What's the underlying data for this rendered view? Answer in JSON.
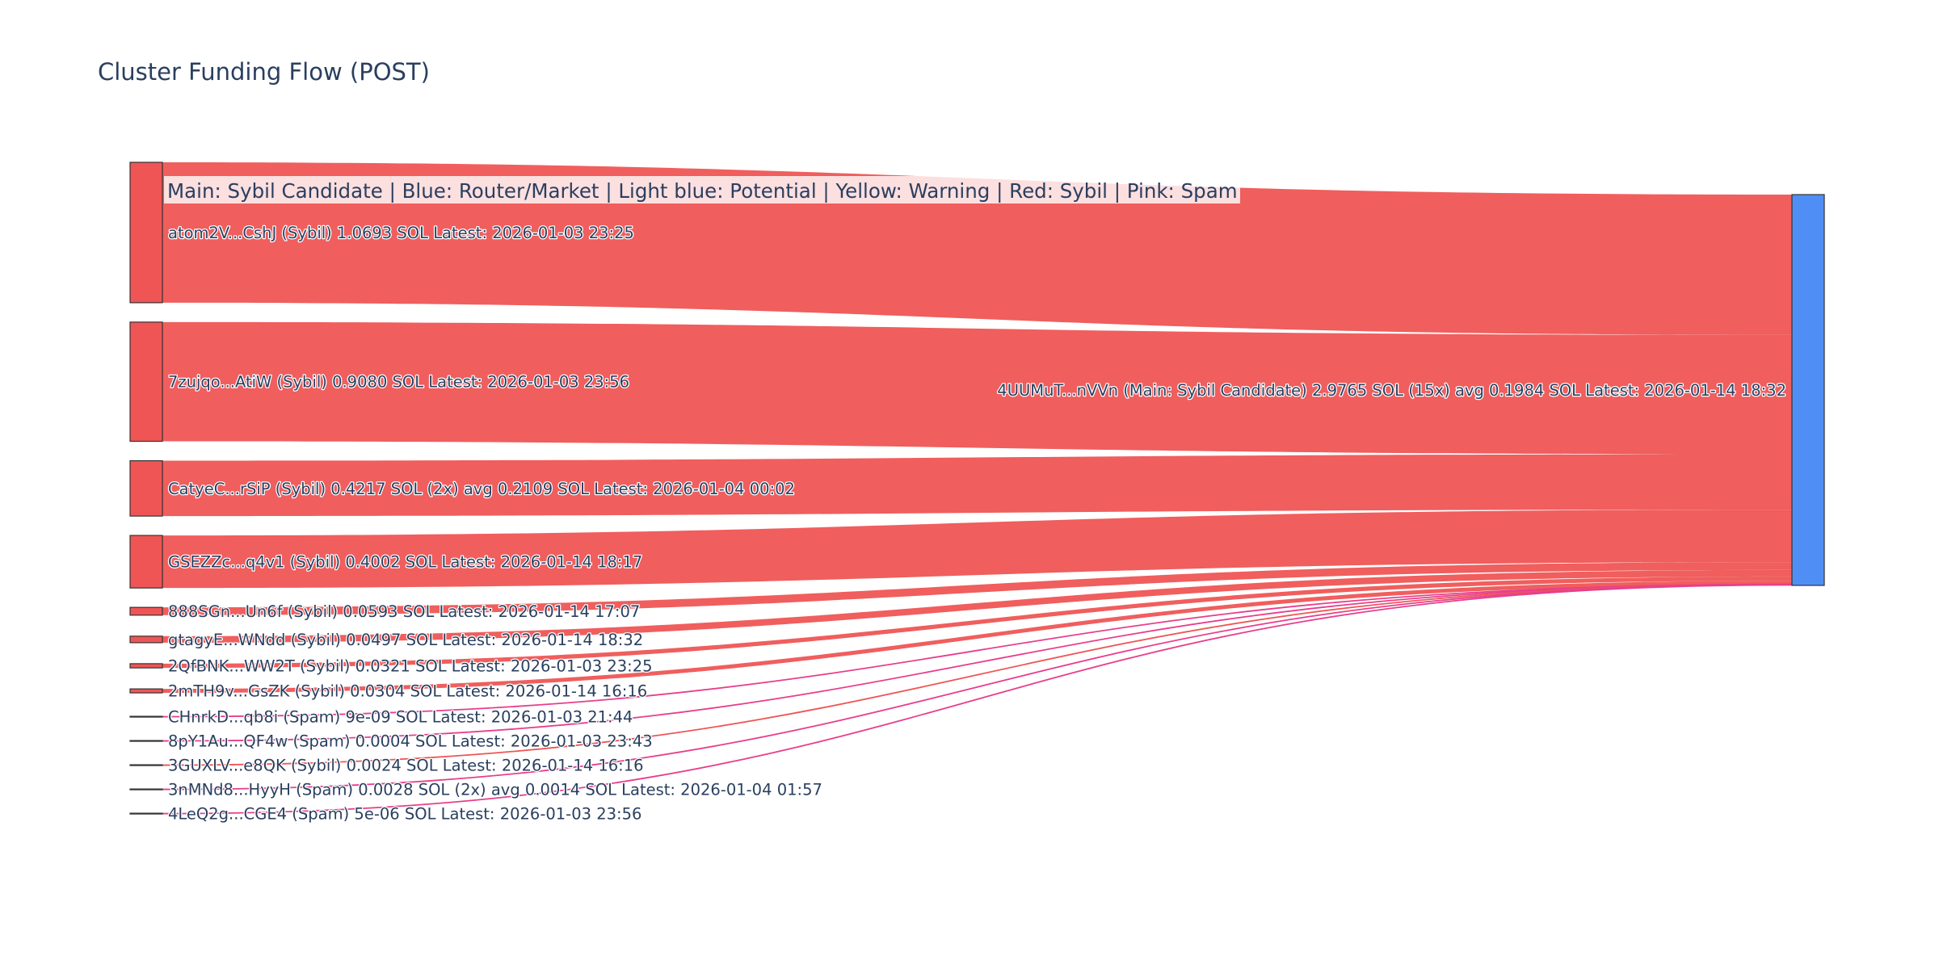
{
  "title": "Cluster Funding Flow (POST)",
  "legend": "Main: Sybil Candidate  |  Blue: Router/Market | Light blue: Potential | Yellow: Warning | Red: Sybil | Pink: Spam",
  "colors": {
    "sybil": "#ef5555",
    "spam": "#e83e8c",
    "main": "#4f8ff5",
    "node_border": "#333333"
  },
  "target": {
    "label": "4UUMuT...nVVn (Main: Sybil Candidate) 2.9765 SOL (15x) avg 0.1984 SOL Latest: 2026-01-14 18:32",
    "value": 2.9765,
    "type": "main"
  },
  "sources": [
    {
      "label": "atom2V...CshJ (Sybil) 1.0693 SOL Latest: 2026-01-03 23:25",
      "value": 1.0693,
      "type": "sybil"
    },
    {
      "label": "7zujqo...AtiW (Sybil) 0.9080 SOL Latest: 2026-01-03 23:56",
      "value": 0.908,
      "type": "sybil"
    },
    {
      "label": "CatyeC...rSiP (Sybil) 0.4217 SOL (2x) avg 0.2109 SOL Latest: 2026-01-04 00:02",
      "value": 0.4217,
      "type": "sybil"
    },
    {
      "label": "GSEZZc...q4v1 (Sybil) 0.4002 SOL Latest: 2026-01-14 18:17",
      "value": 0.4002,
      "type": "sybil"
    },
    {
      "label": "888SGn...Un6f (Sybil) 0.0593 SOL Latest: 2026-01-14 17:07",
      "value": 0.0593,
      "type": "sybil"
    },
    {
      "label": "gtagyE...WNdd (Sybil) 0.0497 SOL Latest: 2026-01-14 18:32",
      "value": 0.0497,
      "type": "sybil"
    },
    {
      "label": "2QfBNK...WW2T (Sybil) 0.0321 SOL Latest: 2026-01-03 23:25",
      "value": 0.0321,
      "type": "sybil"
    },
    {
      "label": "2mTH9v...GsZK (Sybil) 0.0304 SOL Latest: 2026-01-14 16:16",
      "value": 0.0304,
      "type": "sybil"
    },
    {
      "label": "CHnrkD...qb8i (Spam) 9e-09 SOL Latest: 2026-01-03 21:44",
      "value": 9e-09,
      "type": "spam"
    },
    {
      "label": "8pY1Au...QF4w (Spam) 0.0004 SOL Latest: 2026-01-03 23:43",
      "value": 0.0004,
      "type": "spam"
    },
    {
      "label": "3GUXLV...e8QK (Sybil) 0.0024 SOL Latest: 2026-01-14 16:16",
      "value": 0.0024,
      "type": "sybil"
    },
    {
      "label": "3nMNd8...HyyH (Spam) 0.0028 SOL (2x) avg 0.0014 SOL Latest: 2026-01-04 01:57",
      "value": 0.0028,
      "type": "spam"
    },
    {
      "label": "4LeQ2g...CGE4 (Spam) 5e-06 SOL Latest: 2026-01-03 23:56",
      "value": 5e-06,
      "type": "spam"
    }
  ]
}
